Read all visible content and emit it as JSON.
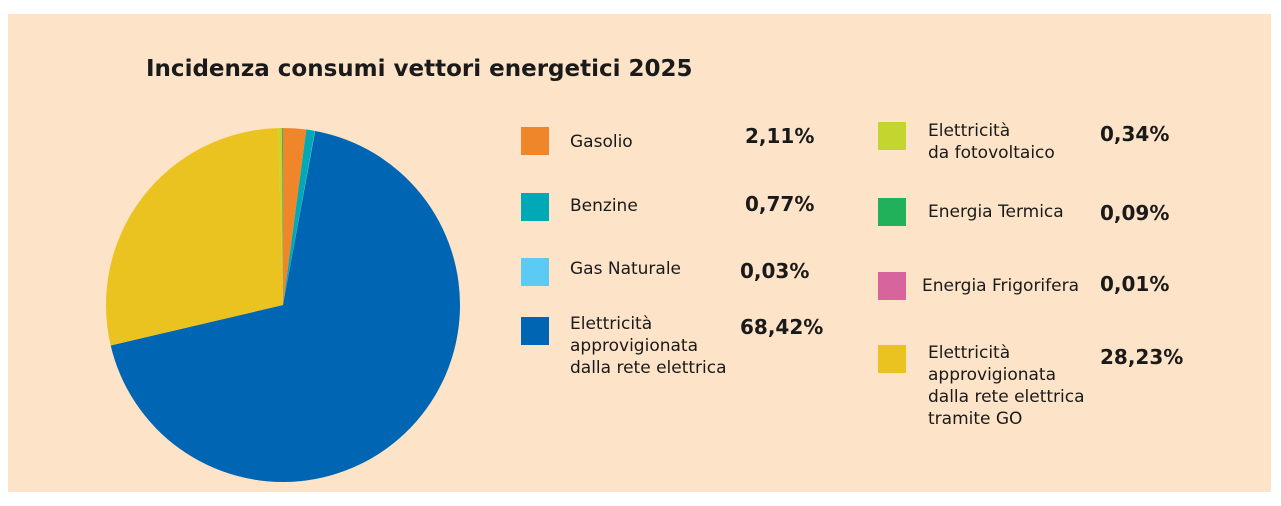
{
  "chart_data": {
    "type": "pie",
    "title": "Incidenza consumi vettori energetici 2025",
    "categories": [
      "Gasolio",
      "Benzine",
      "Gas Naturale",
      "Elettricità\napprovigionata\ndalla rete elettrica",
      "Elettricità\nda fotovoltaico",
      "Energia Termica",
      "Energia Frigorifera",
      "Elettricità\napprovigionata\ndalla rete elettrica\ntramite GO"
    ],
    "values": [
      2.11,
      0.77,
      0.03,
      68.42,
      0.34,
      0.09,
      0.01,
      28.23
    ],
    "value_labels": [
      "2,11%",
      "0,77%",
      "0,03%",
      "68,42%",
      "0,34%",
      "0,09%",
      "0,01%",
      "28,23%"
    ],
    "colors": [
      "#f0862a",
      "#00a9b5",
      "#5ccbf3",
      "#0066b3",
      "#c3d62f",
      "#21b15a",
      "#d8649d",
      "#ebc320"
    ]
  }
}
